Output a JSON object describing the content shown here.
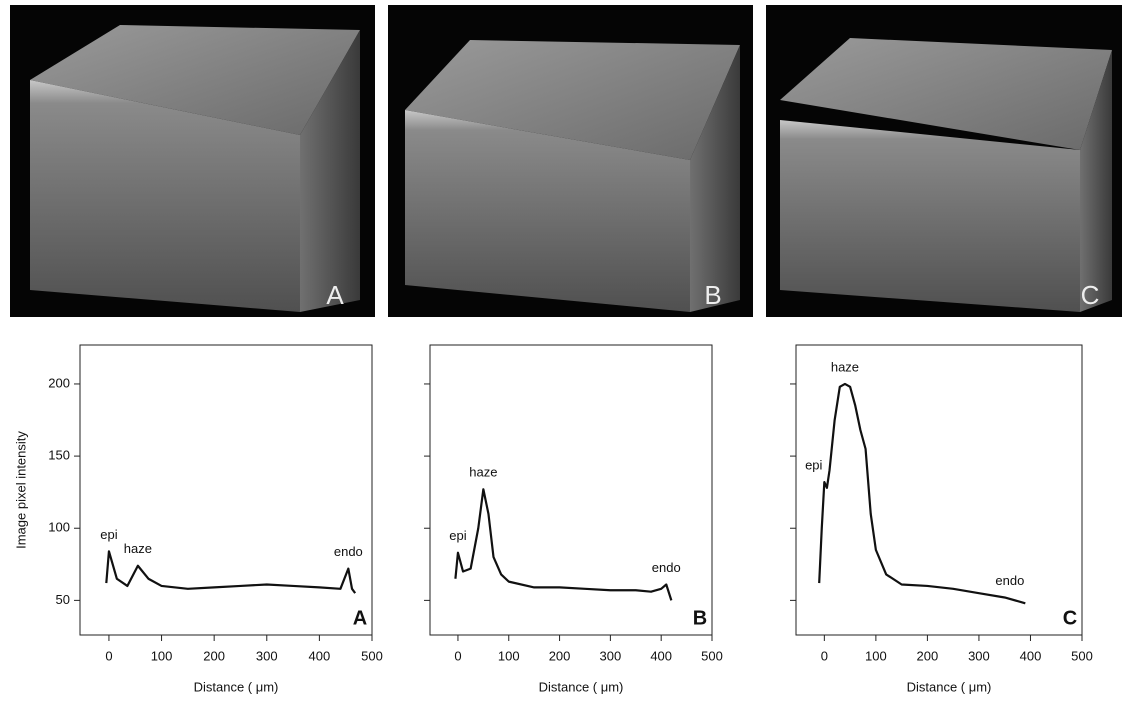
{
  "images": [
    {
      "label": "A"
    },
    {
      "label": "B"
    },
    {
      "label": "C"
    }
  ],
  "chart_data": [
    {
      "type": "line",
      "panel_label": "A",
      "y_label": "Image pixel intensity",
      "x_label": "Distance ( μm)",
      "show_ytick_labels": true,
      "color": "#111111",
      "xlim": [
        -55,
        500
      ],
      "ylim": [
        26,
        227
      ],
      "xticks": [
        0,
        100,
        200,
        300,
        400,
        500
      ],
      "yticks": [
        50,
        100,
        150,
        200
      ],
      "x": [
        -5,
        0,
        15,
        35,
        55,
        75,
        100,
        150,
        200,
        250,
        300,
        350,
        400,
        440,
        455,
        462,
        468
      ],
      "values": [
        62,
        84,
        65,
        60,
        74,
        65,
        60,
        58,
        59,
        60,
        61,
        60,
        59,
        58,
        72,
        58,
        55
      ],
      "annotations": [
        {
          "text": "epi",
          "x": 0,
          "y": 84
        },
        {
          "text": "haze",
          "x": 55,
          "y": 74
        },
        {
          "text": "endo",
          "x": 455,
          "y": 72
        }
      ]
    },
    {
      "type": "line",
      "panel_label": "B",
      "x_label": "Distance ( μm)",
      "show_ytick_labels": false,
      "color": "#111111",
      "xlim": [
        -55,
        500
      ],
      "ylim": [
        26,
        227
      ],
      "xticks": [
        0,
        100,
        200,
        300,
        400,
        500
      ],
      "yticks": [
        50,
        100,
        150,
        200
      ],
      "x": [
        -5,
        0,
        10,
        25,
        40,
        50,
        60,
        70,
        85,
        100,
        150,
        200,
        250,
        300,
        350,
        380,
        400,
        410,
        420
      ],
      "values": [
        65,
        83,
        70,
        72,
        100,
        127,
        110,
        80,
        68,
        63,
        59,
        59,
        58,
        57,
        57,
        56,
        58,
        61,
        50
      ],
      "annotations": [
        {
          "text": "epi",
          "x": 0,
          "y": 83
        },
        {
          "text": "haze",
          "x": 50,
          "y": 127
        },
        {
          "text": "endo",
          "x": 410,
          "y": 61
        }
      ]
    },
    {
      "type": "line",
      "panel_label": "C",
      "x_label": "Distance ( μm)",
      "show_ytick_labels": false,
      "color": "#111111",
      "xlim": [
        -55,
        500
      ],
      "ylim": [
        26,
        227
      ],
      "xticks": [
        0,
        100,
        200,
        300,
        400,
        500
      ],
      "yticks": [
        50,
        100,
        150,
        200
      ],
      "x": [
        -10,
        -5,
        0,
        5,
        10,
        20,
        30,
        40,
        50,
        60,
        70,
        80,
        90,
        100,
        120,
        150,
        200,
        250,
        300,
        350,
        390
      ],
      "values": [
        62,
        100,
        132,
        128,
        140,
        175,
        198,
        200,
        198,
        185,
        168,
        155,
        110,
        85,
        68,
        61,
        60,
        58,
        55,
        52,
        48
      ],
      "annotations": [
        {
          "text": "epi",
          "x": -5,
          "y": 132
        },
        {
          "text": "haze",
          "x": 40,
          "y": 200
        },
        {
          "text": "endo",
          "x": 360,
          "y": 52
        }
      ]
    }
  ]
}
